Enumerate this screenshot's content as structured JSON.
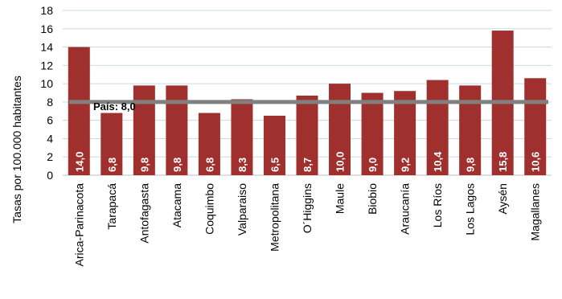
{
  "chart_data": {
    "type": "bar",
    "ylabel": "Tasas por 100.000 habitantes",
    "xlabel": "",
    "ylim": [
      0,
      18
    ],
    "yticks": [
      0,
      2,
      4,
      6,
      8,
      10,
      12,
      14,
      16,
      18
    ],
    "grid": true,
    "categories": [
      "Arica-Parinacota",
      "Tarapacá",
      "Antofagasta",
      "Atacama",
      "Coquimbo",
      "Valparaiso",
      "Metropolitana",
      "O´Higgins",
      "Maule",
      "Biobio",
      "Araucanía",
      "Los Ríos",
      "Los Lagos",
      "Aysén",
      "Magallanes"
    ],
    "values": [
      14.0,
      6.8,
      9.8,
      9.8,
      6.8,
      8.3,
      6.5,
      8.7,
      10.0,
      9.0,
      9.2,
      10.4,
      9.8,
      15.8,
      10.6
    ],
    "value_labels": [
      "14,0",
      "6,8",
      "9,8",
      "9,8",
      "6,8",
      "8,3",
      "6,5",
      "8,7",
      "10,0",
      "9,0",
      "9,2",
      "10,4",
      "9,8",
      "15,8",
      "10,6"
    ],
    "reference_line": {
      "value": 8.0,
      "label": "País: 8,0"
    },
    "colors": {
      "bar": "#a0302e",
      "reference": "#808080",
      "grid": "#c9d9e8"
    }
  }
}
